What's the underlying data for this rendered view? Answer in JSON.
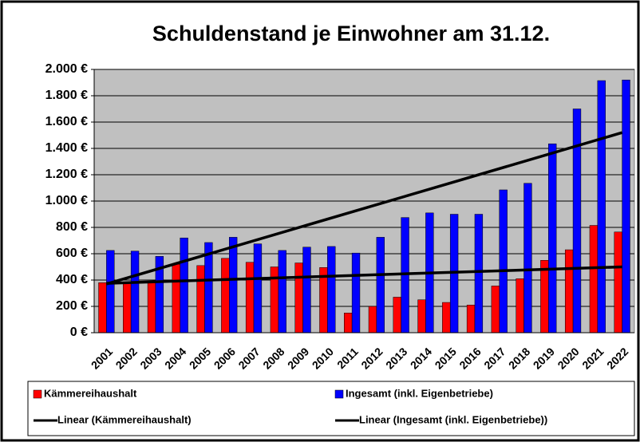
{
  "chart_data": {
    "type": "bar",
    "title": "Schuldenstand je Einwohner am 31.12.",
    "categories": [
      "2001",
      "2002",
      "2003",
      "2004",
      "2005",
      "2006",
      "2007",
      "2008",
      "2009",
      "2010",
      "2011",
      "2012",
      "2013",
      "2014",
      "2015",
      "2016",
      "2017",
      "2018",
      "2019",
      "2020",
      "2021",
      "2022"
    ],
    "series": [
      {
        "name": "Kämmereihaushalt",
        "color": "#ff0000",
        "values": [
          380,
          385,
          385,
          520,
          510,
          565,
          535,
          500,
          530,
          495,
          150,
          200,
          270,
          250,
          230,
          210,
          355,
          410,
          550,
          630,
          815,
          765
        ]
      },
      {
        "name": "Ingesamt (inkl. Eigenbetriebe)",
        "color": "#0000ff",
        "values": [
          625,
          620,
          580,
          720,
          685,
          725,
          675,
          625,
          650,
          655,
          605,
          725,
          875,
          910,
          900,
          900,
          1085,
          1135,
          1435,
          1700,
          1915,
          1920
        ]
      }
    ],
    "trendlines": [
      {
        "name": "Linear (Kämmereihaushalt)",
        "color": "#000000",
        "values": [
          375,
          500
        ]
      },
      {
        "name": "Linear (Ingesamt (inkl. Eigenbetriebe))",
        "color": "#000000",
        "values": [
          370,
          1520
        ]
      }
    ],
    "ylim": [
      0,
      2000
    ],
    "yticks": [
      {
        "value": 0,
        "label": "0 €"
      },
      {
        "value": 200,
        "label": "200 €"
      },
      {
        "value": 400,
        "label": "400 €"
      },
      {
        "value": 600,
        "label": "600 €"
      },
      {
        "value": 800,
        "label": "800 €"
      },
      {
        "value": 1000,
        "label": "1.000 €"
      },
      {
        "value": 1200,
        "label": "1.200 €"
      },
      {
        "value": 1400,
        "label": "1.400 €"
      },
      {
        "value": 1600,
        "label": "1.600 €"
      },
      {
        "value": 1800,
        "label": "1.800 €"
      },
      {
        "value": 2000,
        "label": "2.000 €"
      }
    ],
    "grid": true,
    "legend": "bottom"
  }
}
